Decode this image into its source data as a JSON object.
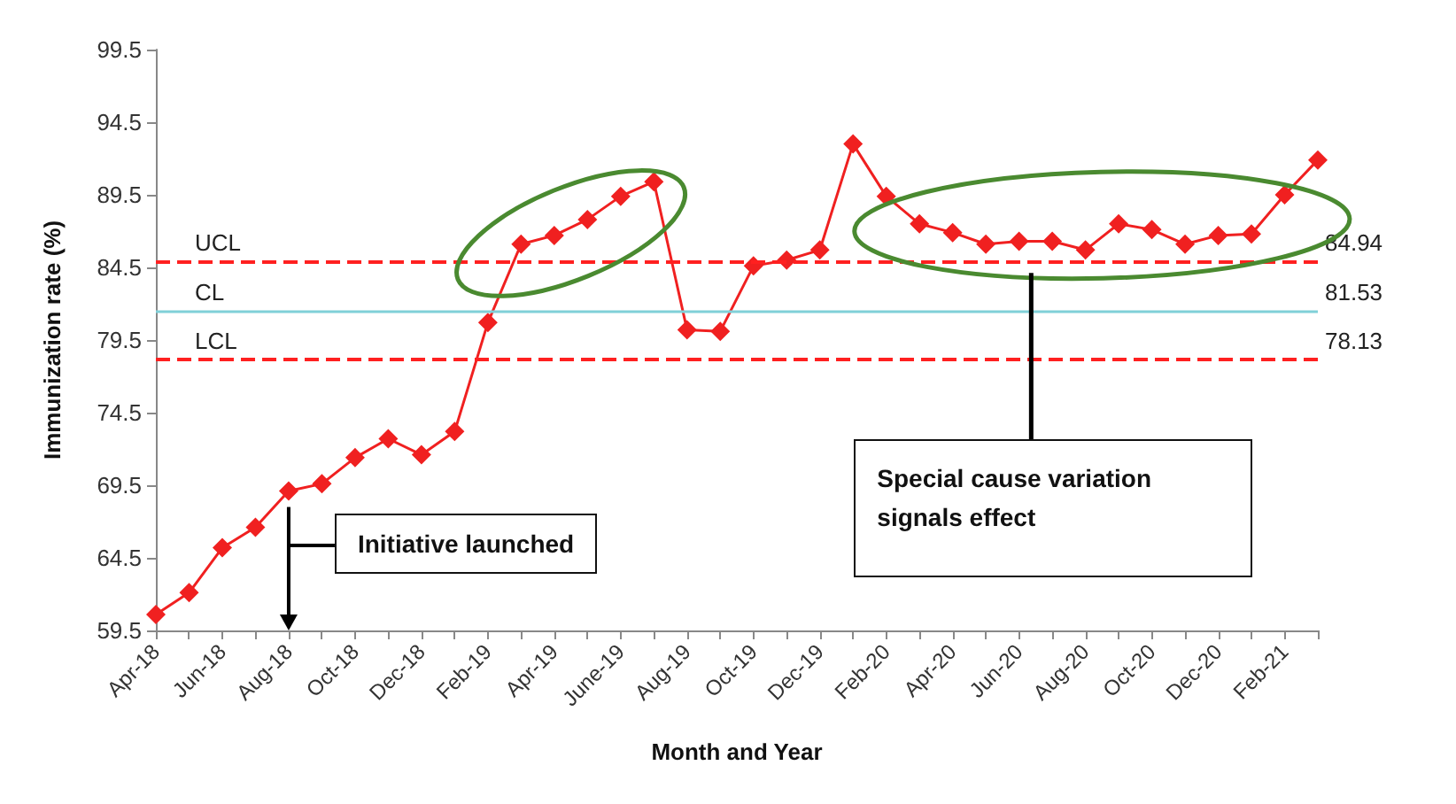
{
  "chart_data": {
    "type": "line",
    "xlabel": "Month and Year",
    "ylabel": "Immunization rate (%)",
    "categories": [
      "Apr-18",
      null,
      "Jun-18",
      null,
      "Aug-18",
      null,
      "Oct-18",
      null,
      "Dec-18",
      null,
      "Feb-19",
      null,
      "Apr-19",
      null,
      "June-19",
      null,
      "Aug-19",
      null,
      "Oct-19",
      null,
      "Dec-19",
      null,
      "Feb-20",
      null,
      "Apr-20",
      null,
      "Jun-20",
      null,
      "Aug-20",
      null,
      "Oct-20",
      null,
      "Dec-20",
      null,
      "Feb-21",
      null
    ],
    "series": [
      {
        "color": "#f02020",
        "values": [
          60.6,
          62.1,
          65.2,
          66.6,
          69.1,
          69.6,
          71.4,
          72.7,
          71.6,
          73.2,
          80.7,
          86.1,
          86.7,
          87.8,
          89.4,
          90.4,
          80.2,
          80.1,
          84.6,
          85.0,
          85.7,
          93.0,
          89.4,
          87.5,
          86.9,
          86.1,
          86.3,
          86.3,
          85.7,
          87.5,
          87.1,
          86.1,
          86.7,
          86.8,
          89.5,
          91.9
        ]
      }
    ],
    "ylim": [
      59.5,
      99.5
    ],
    "yticks": [
      59.5,
      64.5,
      69.5,
      74.5,
      79.5,
      84.5,
      89.5,
      94.5,
      99.5
    ],
    "grid": false,
    "marker": "diamond",
    "line_style": "solid",
    "ref_lines": [
      {
        "axis": "y",
        "value": 84.94,
        "label": "UCL",
        "color": "#ff2020",
        "line_style": "dashed"
      },
      {
        "axis": "y",
        "value": 81.53,
        "label": "CL",
        "color": "#80d0d8",
        "line_style": "solid"
      },
      {
        "axis": "y",
        "value": 78.13,
        "label": "LCL",
        "color": "#ff2020",
        "line_style": "dashed"
      }
    ],
    "annotations": [
      "Initiative launched",
      "Special cause variation signals effect",
      "84.94",
      "81.53",
      "78.13"
    ]
  }
}
